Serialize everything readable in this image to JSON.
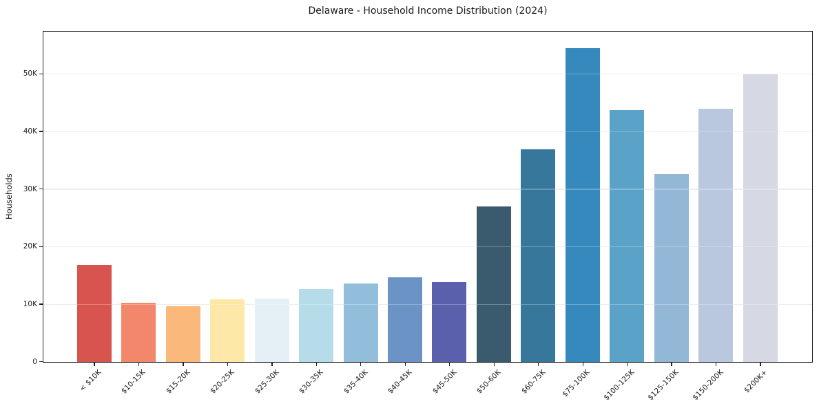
{
  "chart_data": {
    "type": "bar",
    "title": "Delaware - Household Income Distribution (2024)",
    "xlabel": "",
    "ylabel": "Households",
    "categories": [
      "< $10K",
      "$10-15K",
      "$15-20K",
      "$20-25K",
      "$25-30K",
      "$30-35K",
      "$35-40K",
      "$40-45K",
      "$45-50K",
      "$50-60K",
      "$60-75K",
      "$75-100K",
      "$100-125K",
      "$125-150K",
      "$150-200K",
      "$200K+"
    ],
    "values": [
      16800,
      10300,
      9700,
      10900,
      11000,
      12700,
      13600,
      14700,
      13900,
      27000,
      36900,
      54500,
      43700,
      32600,
      44000,
      50000
    ],
    "bar_colors": [
      "#d8544e",
      "#f2876b",
      "#fbb87b",
      "#fde8a8",
      "#e5f0f6",
      "#b6dcea",
      "#92bedb",
      "#6b93c5",
      "#5b60ac",
      "#3a5a6e",
      "#36779b",
      "#3589bd",
      "#5aa2c8",
      "#93b7d7",
      "#b9c7df",
      "#d6d8e4"
    ],
    "ylim": [
      0,
      57300
    ],
    "ytick_values": [
      0,
      10000,
      20000,
      30000,
      40000,
      50000
    ],
    "ytick_labels": [
      "0",
      "10K",
      "20K",
      "30K",
      "40K",
      "50K"
    ],
    "grid": "y",
    "legend": "none"
  }
}
